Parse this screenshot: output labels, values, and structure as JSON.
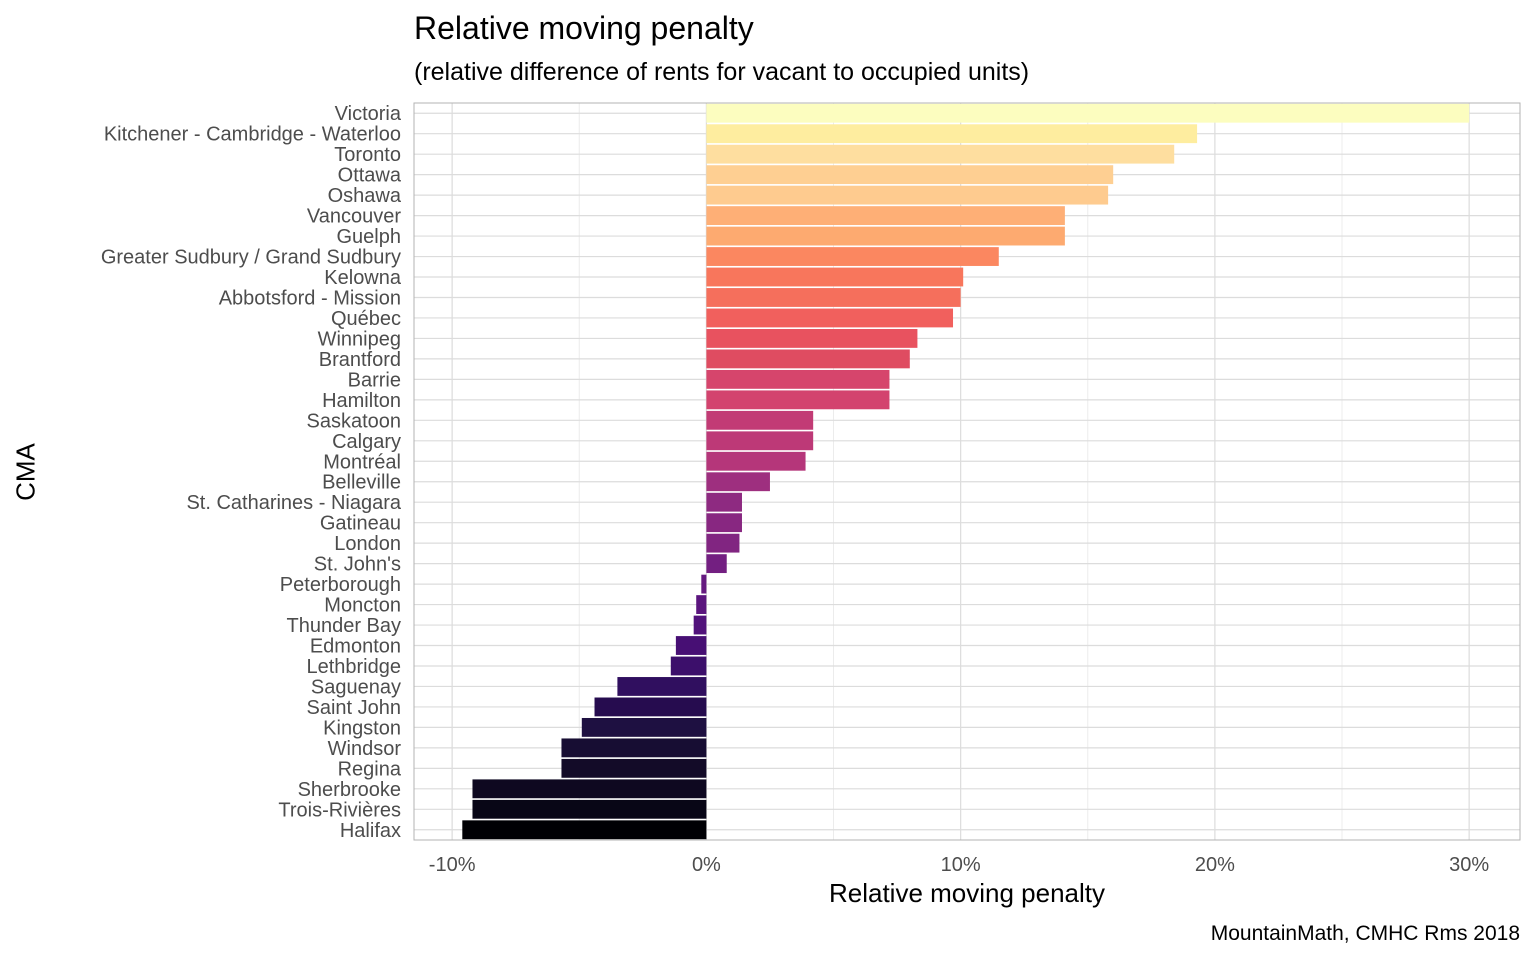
{
  "chart_data": {
    "type": "bar",
    "orientation": "horizontal",
    "title": "Relative moving penalty",
    "subtitle": "(relative difference of rents for vacant to occupied units)",
    "xlabel": "Relative moving penalty",
    "ylabel": "CMA",
    "caption": "MountainMath, CMHC Rms 2018",
    "xlim": [
      -0.115,
      0.32
    ],
    "xticks": [
      -0.1,
      0,
      0.1,
      0.2,
      0.3
    ],
    "xtick_labels": [
      "-10%",
      "0%",
      "10%",
      "20%",
      "30%"
    ],
    "grid": true,
    "color_scale": "magma",
    "categories": [
      "Victoria",
      "Kitchener - Cambridge - Waterloo",
      "Toronto",
      "Ottawa",
      "Oshawa",
      "Vancouver",
      "Guelph",
      "Greater Sudbury / Grand Sudbury",
      "Kelowna",
      "Abbotsford - Mission",
      "Québec",
      "Winnipeg",
      "Brantford",
      "Barrie",
      "Hamilton",
      "Saskatoon",
      "Calgary",
      "Montréal",
      "Belleville",
      "St. Catharines - Niagara",
      "Gatineau",
      "London",
      "St. John's",
      "Peterborough",
      "Moncton",
      "Thunder Bay",
      "Edmonton",
      "Lethbridge",
      "Saguenay",
      "Saint John",
      "Kingston",
      "Windsor",
      "Regina",
      "Sherbrooke",
      "Trois-Rivières",
      "Halifax"
    ],
    "values": [
      0.3,
      0.193,
      0.184,
      0.16,
      0.158,
      0.141,
      0.141,
      0.115,
      0.101,
      0.1,
      0.097,
      0.083,
      0.08,
      0.072,
      0.072,
      0.042,
      0.042,
      0.039,
      0.025,
      0.014,
      0.014,
      0.013,
      0.008,
      -0.002,
      -0.004,
      -0.005,
      -0.012,
      -0.014,
      -0.035,
      -0.044,
      -0.049,
      -0.057,
      -0.057,
      -0.092,
      -0.092,
      -0.096
    ],
    "colors": [
      "#fcfdbf",
      "#feed9f",
      "#fede9f",
      "#fecf92",
      "#fecb8f",
      "#feaf76",
      "#fdaa70",
      "#fb8760",
      "#f8765c",
      "#f56f5c",
      "#f1605d",
      "#e8525f",
      "#df4c61",
      "#d6456c",
      "#d3436e",
      "#c23b75",
      "#bd3977",
      "#b5367a",
      "#9e2f7f",
      "#8e2a81",
      "#882781",
      "#812581",
      "#731f81",
      "#651a80",
      "#5b157e",
      "#51127b",
      "#470f74",
      "#3c0f6b",
      "#300f5f",
      "#260c4f",
      "#1e1041",
      "#170d33",
      "#130b28",
      "#0e0820",
      "#080616",
      "#000004"
    ]
  }
}
